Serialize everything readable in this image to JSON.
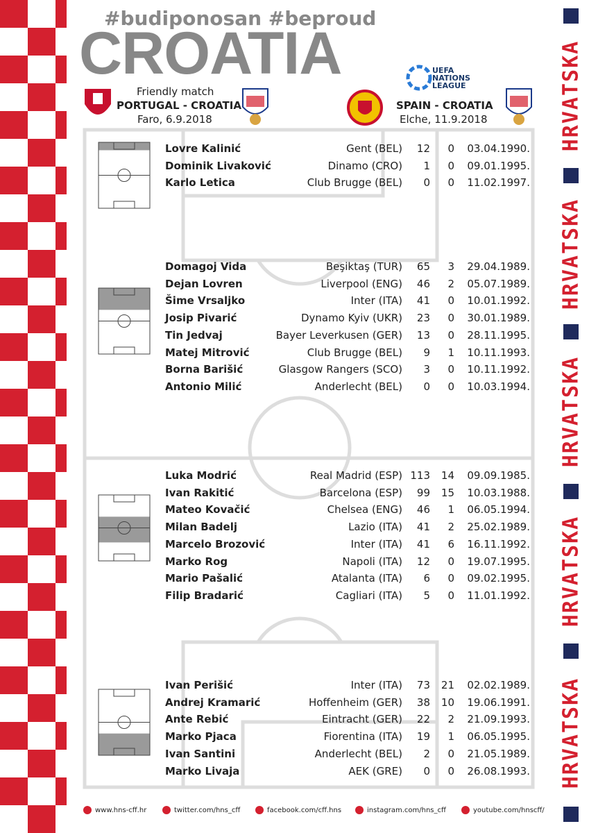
{
  "header": {
    "hashtags": "#budiponosan  #beproud",
    "title": "CROATIA"
  },
  "matches": [
    {
      "competition": "Friendly match",
      "fixture": "PORTUGAL - CROATIA",
      "venue": "Faro, 6.9.2018"
    },
    {
      "competition_logo": [
        "UEFA",
        "NATIONS",
        "LEAGUE"
      ],
      "fixture": "SPAIN - CROATIA",
      "venue": "Elche, 11.9.2018"
    }
  ],
  "side": {
    "text": "HRVATSKA"
  },
  "squad": {
    "groups": [
      {
        "players": [
          [
            "Lovre Kalinić",
            "Gent (BEL)",
            12,
            0,
            "03.04.1990."
          ],
          [
            "Dominik Livaković",
            "Dinamo (CRO)",
            1,
            0,
            "09.01.1995."
          ],
          [
            "Karlo Letica",
            "Club Brugge (BEL)",
            0,
            0,
            "11.02.1997."
          ]
        ]
      },
      {
        "players": [
          [
            "Domagoj Vida",
            "Beşiktaş (TUR)",
            65,
            3,
            "29.04.1989."
          ],
          [
            "Dejan Lovren",
            "Liverpool (ENG)",
            46,
            2,
            "05.07.1989."
          ],
          [
            "Šime Vrsaljko",
            "Inter (ITA)",
            41,
            0,
            "10.01.1992."
          ],
          [
            "Josip Pivarić",
            "Dynamo Kyiv (UKR)",
            23,
            0,
            "30.01.1989."
          ],
          [
            "Tin Jedvaj",
            "Bayer Leverkusen (GER)",
            13,
            0,
            "28.11.1995."
          ],
          [
            "Matej Mitrović",
            "Club Brugge (BEL)",
            9,
            1,
            "10.11.1993."
          ],
          [
            "Borna Barišić",
            "Glasgow Rangers (SCO)",
            3,
            0,
            "10.11.1992."
          ],
          [
            "Antonio Milić",
            "Anderlecht (BEL)",
            0,
            0,
            "10.03.1994."
          ]
        ]
      },
      {
        "players": [
          [
            "Luka Modrić",
            "Real Madrid (ESP)",
            113,
            14,
            "09.09.1985."
          ],
          [
            "Ivan Rakitić",
            "Barcelona (ESP)",
            99,
            15,
            "10.03.1988."
          ],
          [
            "Mateo Kovačić",
            "Chelsea (ENG)",
            46,
            1,
            "06.05.1994."
          ],
          [
            "Milan Badelj",
            "Lazio (ITA)",
            41,
            2,
            "25.02.1989."
          ],
          [
            "Marcelo Brozović",
            "Inter (ITA)",
            41,
            6,
            "16.11.1992."
          ],
          [
            "Marko Rog",
            "Napoli (ITA)",
            12,
            0,
            "19.07.1995."
          ],
          [
            "Mario Pašalić",
            "Atalanta (ITA)",
            6,
            0,
            "09.02.1995."
          ],
          [
            "Filip Bradarić",
            "Cagliari (ITA)",
            5,
            0,
            "11.01.1992."
          ]
        ]
      },
      {
        "players": [
          [
            "Ivan Perišić",
            "Inter (ITA)",
            73,
            21,
            "02.02.1989."
          ],
          [
            "Andrej Kramarić",
            "Hoffenheim (GER)",
            38,
            10,
            "19.06.1991."
          ],
          [
            "Ante Rebić",
            "Eintracht (GER)",
            22,
            2,
            "21.09.1993."
          ],
          [
            "Marko Pjaca",
            "Fiorentina (ITA)",
            19,
            1,
            "06.05.1995."
          ],
          [
            "Ivan Santini",
            "Anderlecht (BEL)",
            2,
            0,
            "21.05.1989."
          ],
          [
            "Marko Livaja",
            "AEK (GRE)",
            0,
            0,
            "26.08.1993."
          ]
        ]
      }
    ]
  },
  "footer": {
    "links": [
      "www.hns-cff.hr",
      "twitter.com/hns_cff",
      "facebook.com/cff.hns",
      "instagram.com/hns_cff",
      "youtube.com/hnscff/"
    ]
  }
}
